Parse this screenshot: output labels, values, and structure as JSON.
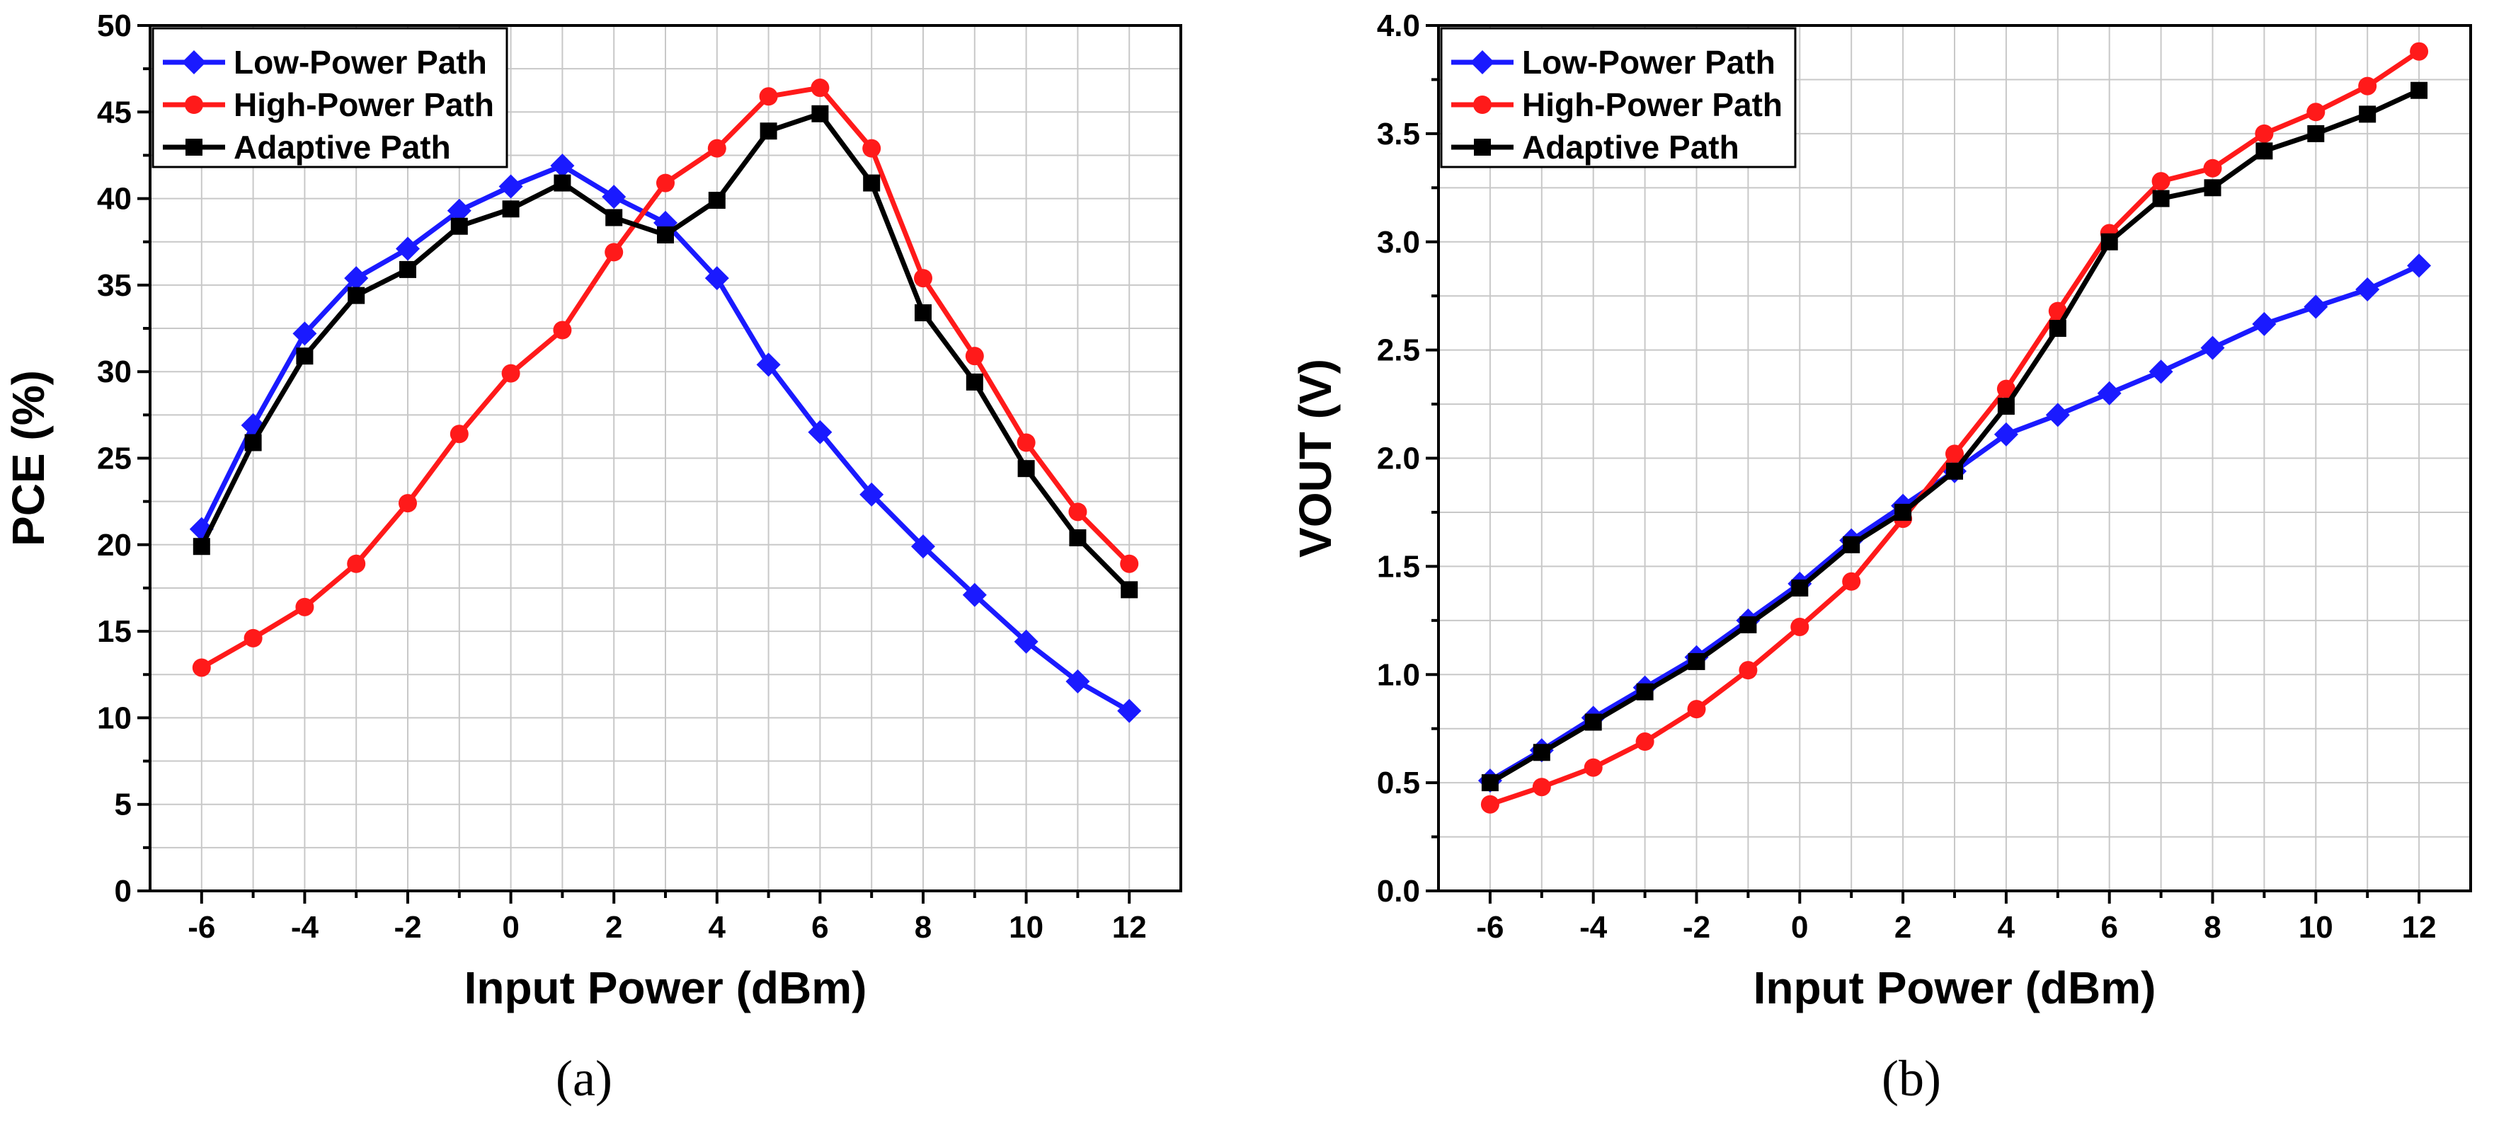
{
  "chart_data": [
    {
      "type": "line",
      "caption": "(a)",
      "title": "",
      "xlabel": "Input Power (dBm)",
      "ylabel": "PCE (%)",
      "xlim": [
        -7,
        13
      ],
      "ylim": [
        0,
        50
      ],
      "xticks": [
        -6,
        -4,
        -2,
        0,
        2,
        4,
        6,
        8,
        10,
        12
      ],
      "xtick_labels": [
        "-6",
        "-4",
        "-2",
        "0",
        "2",
        "4",
        "6",
        "8",
        "10",
        "12"
      ],
      "yticks": [
        0,
        5,
        10,
        15,
        20,
        25,
        30,
        35,
        40,
        45,
        50
      ],
      "ytick_labels": [
        "0",
        "5",
        "10",
        "15",
        "20",
        "25",
        "30",
        "35",
        "40",
        "45",
        "50"
      ],
      "grid": true,
      "legend_position": "top-left",
      "x": [
        -6,
        -5,
        -4,
        -3,
        -2,
        -1,
        0,
        1,
        2,
        3,
        4,
        5,
        6,
        7,
        8,
        9,
        10,
        11,
        12
      ],
      "series": [
        {
          "name": "Low-Power Path",
          "color": "#1a1aff",
          "marker": "diamond",
          "values": [
            20.9,
            26.9,
            32.2,
            35.4,
            37.1,
            39.3,
            40.7,
            41.9,
            40.1,
            38.6,
            35.4,
            30.4,
            26.5,
            22.9,
            19.9,
            17.1,
            14.4,
            12.1,
            10.4
          ]
        },
        {
          "name": "High-Power Path",
          "color": "#ff1a1a",
          "marker": "circle",
          "values": [
            12.9,
            14.6,
            16.4,
            18.9,
            22.4,
            26.4,
            29.9,
            32.4,
            36.9,
            40.9,
            42.9,
            45.9,
            46.4,
            42.9,
            35.4,
            30.9,
            25.9,
            21.9,
            18.9
          ]
        },
        {
          "name": "Adaptive Path",
          "color": "#000000",
          "marker": "square",
          "values": [
            19.9,
            25.9,
            30.9,
            34.4,
            35.9,
            38.4,
            39.4,
            40.9,
            38.9,
            37.9,
            39.9,
            43.9,
            44.9,
            40.9,
            33.4,
            29.4,
            24.4,
            20.4,
            17.4
          ]
        }
      ]
    },
    {
      "type": "line",
      "caption": "(b)",
      "title": "",
      "xlabel": "Input Power (dBm)",
      "ylabel": "VOUT (V)",
      "xlim": [
        -7,
        13
      ],
      "ylim": [
        0,
        4
      ],
      "xticks": [
        -6,
        -4,
        -2,
        0,
        2,
        4,
        6,
        8,
        10,
        12
      ],
      "xtick_labels": [
        "-6",
        "-4",
        "-2",
        "0",
        "2",
        "4",
        "6",
        "8",
        "10",
        "12"
      ],
      "yticks": [
        0,
        0.5,
        1,
        1.5,
        2,
        2.5,
        3,
        3.5,
        4
      ],
      "ytick_labels": [
        "0.0",
        "0.5",
        "1.0",
        "1.5",
        "2.0",
        "2.5",
        "3.0",
        "3.5",
        "4.0"
      ],
      "grid": true,
      "legend_position": "top-left",
      "x": [
        -6,
        -5,
        -4,
        -3,
        -2,
        -1,
        0,
        1,
        2,
        3,
        4,
        5,
        6,
        7,
        8,
        9,
        10,
        11,
        12
      ],
      "series": [
        {
          "name": "Low-Power Path",
          "color": "#1a1aff",
          "marker": "diamond",
          "values": [
            0.51,
            0.65,
            0.8,
            0.94,
            1.08,
            1.25,
            1.42,
            1.62,
            1.78,
            1.94,
            2.11,
            2.2,
            2.3,
            2.4,
            2.51,
            2.62,
            2.7,
            2.78,
            2.89
          ]
        },
        {
          "name": "High-Power Path",
          "color": "#ff1a1a",
          "marker": "circle",
          "values": [
            0.4,
            0.48,
            0.57,
            0.69,
            0.84,
            1.02,
            1.22,
            1.43,
            1.72,
            2.02,
            2.32,
            2.68,
            3.04,
            3.28,
            3.34,
            3.5,
            3.6,
            3.72,
            3.88
          ]
        },
        {
          "name": "Adaptive Path",
          "color": "#000000",
          "marker": "square",
          "values": [
            0.5,
            0.64,
            0.78,
            0.92,
            1.06,
            1.23,
            1.4,
            1.6,
            1.75,
            1.94,
            2.24,
            2.6,
            3.0,
            3.2,
            3.25,
            3.42,
            3.5,
            3.59,
            3.7
          ]
        }
      ]
    }
  ]
}
